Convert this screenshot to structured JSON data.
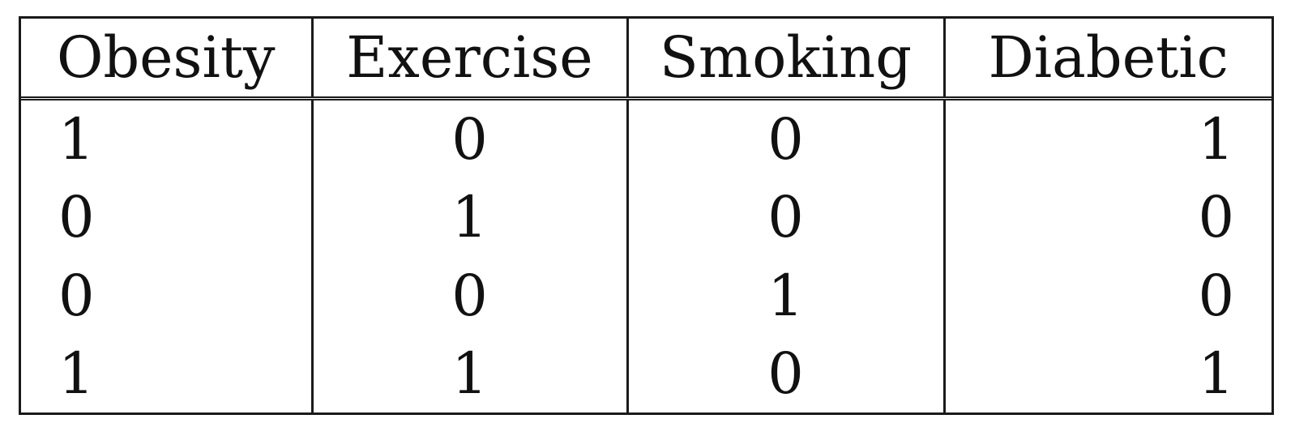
{
  "table": {
    "headers": [
      "Obesity",
      "Exercise",
      "Smoking",
      "Diabetic"
    ],
    "rows": [
      [
        "1",
        "0",
        "0",
        "1"
      ],
      [
        "0",
        "1",
        "0",
        "0"
      ],
      [
        "0",
        "0",
        "1",
        "0"
      ],
      [
        "1",
        "1",
        "0",
        "1"
      ]
    ]
  }
}
